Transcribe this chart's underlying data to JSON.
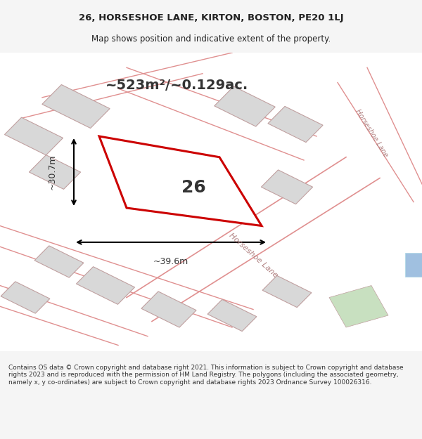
{
  "title_line1": "26, HORSESHOE LANE, KIRTON, BOSTON, PE20 1LJ",
  "title_line2": "Map shows position and indicative extent of the property.",
  "area_text": "~523m²/~0.129ac.",
  "label_number": "26",
  "dim_width": "~39.6m",
  "dim_height": "~30.7m",
  "road_label1": "Horseshoe Lane",
  "road_label2": "Horseshoe Lane",
  "footer_text": "Contains OS data © Crown copyright and database right 2021. This information is subject to Crown copyright and database rights 2023 and is reproduced with the permission of HM Land Registry. The polygons (including the associated geometry, namely x, y co-ordinates) are subject to Crown copyright and database rights 2023 Ordnance Survey 100026316.",
  "bg_color": "#f5f5f5",
  "map_bg": "#ffffff",
  "highlight_polygon_color": "#cc0000",
  "highlight_fill": "#ffffff",
  "road_line_color": "#e8a0a0",
  "building_fill": "#d8d8d8",
  "building_edge": "#c0a0a0",
  "green_fill": "#c8e0c0",
  "blue_fill": "#a0c0e0"
}
